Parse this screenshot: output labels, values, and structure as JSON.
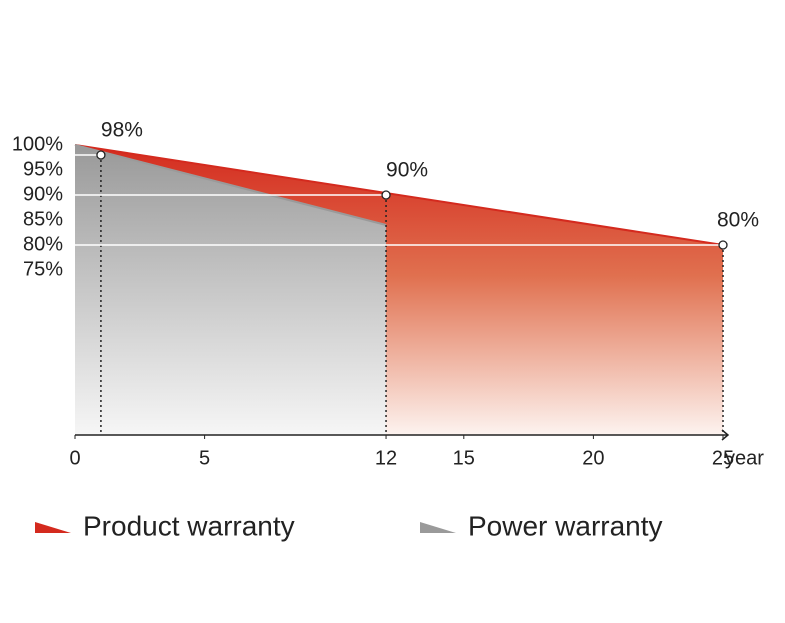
{
  "chart_data": {
    "type": "area",
    "x_label": "year",
    "series": [
      {
        "name": "Product warranty",
        "color": "#d42a1e",
        "x": [
          0,
          25
        ],
        "values": [
          100,
          80
        ]
      },
      {
        "name": "Power warranty",
        "color": "#9a9a9a",
        "x": [
          0,
          12
        ],
        "values": [
          100,
          84
        ]
      }
    ],
    "points": [
      {
        "x": 1,
        "value": 98,
        "label": "98%"
      },
      {
        "x": 12,
        "value": 90,
        "label": "90%"
      },
      {
        "x": 25,
        "value": 80,
        "label": "80%"
      }
    ],
    "xlim": [
      0,
      25
    ],
    "xticks": [
      0,
      5,
      12,
      15,
      20,
      25
    ],
    "ylim": [
      42,
      100
    ],
    "yticks": [
      {
        "value": 100,
        "label": "100%"
      },
      {
        "value": 95,
        "label": "95%"
      },
      {
        "value": 90,
        "label": "90%"
      },
      {
        "value": 85,
        "label": "85%"
      },
      {
        "value": 80,
        "label": "80%"
      },
      {
        "value": 75,
        "label": "75%"
      }
    ]
  }
}
